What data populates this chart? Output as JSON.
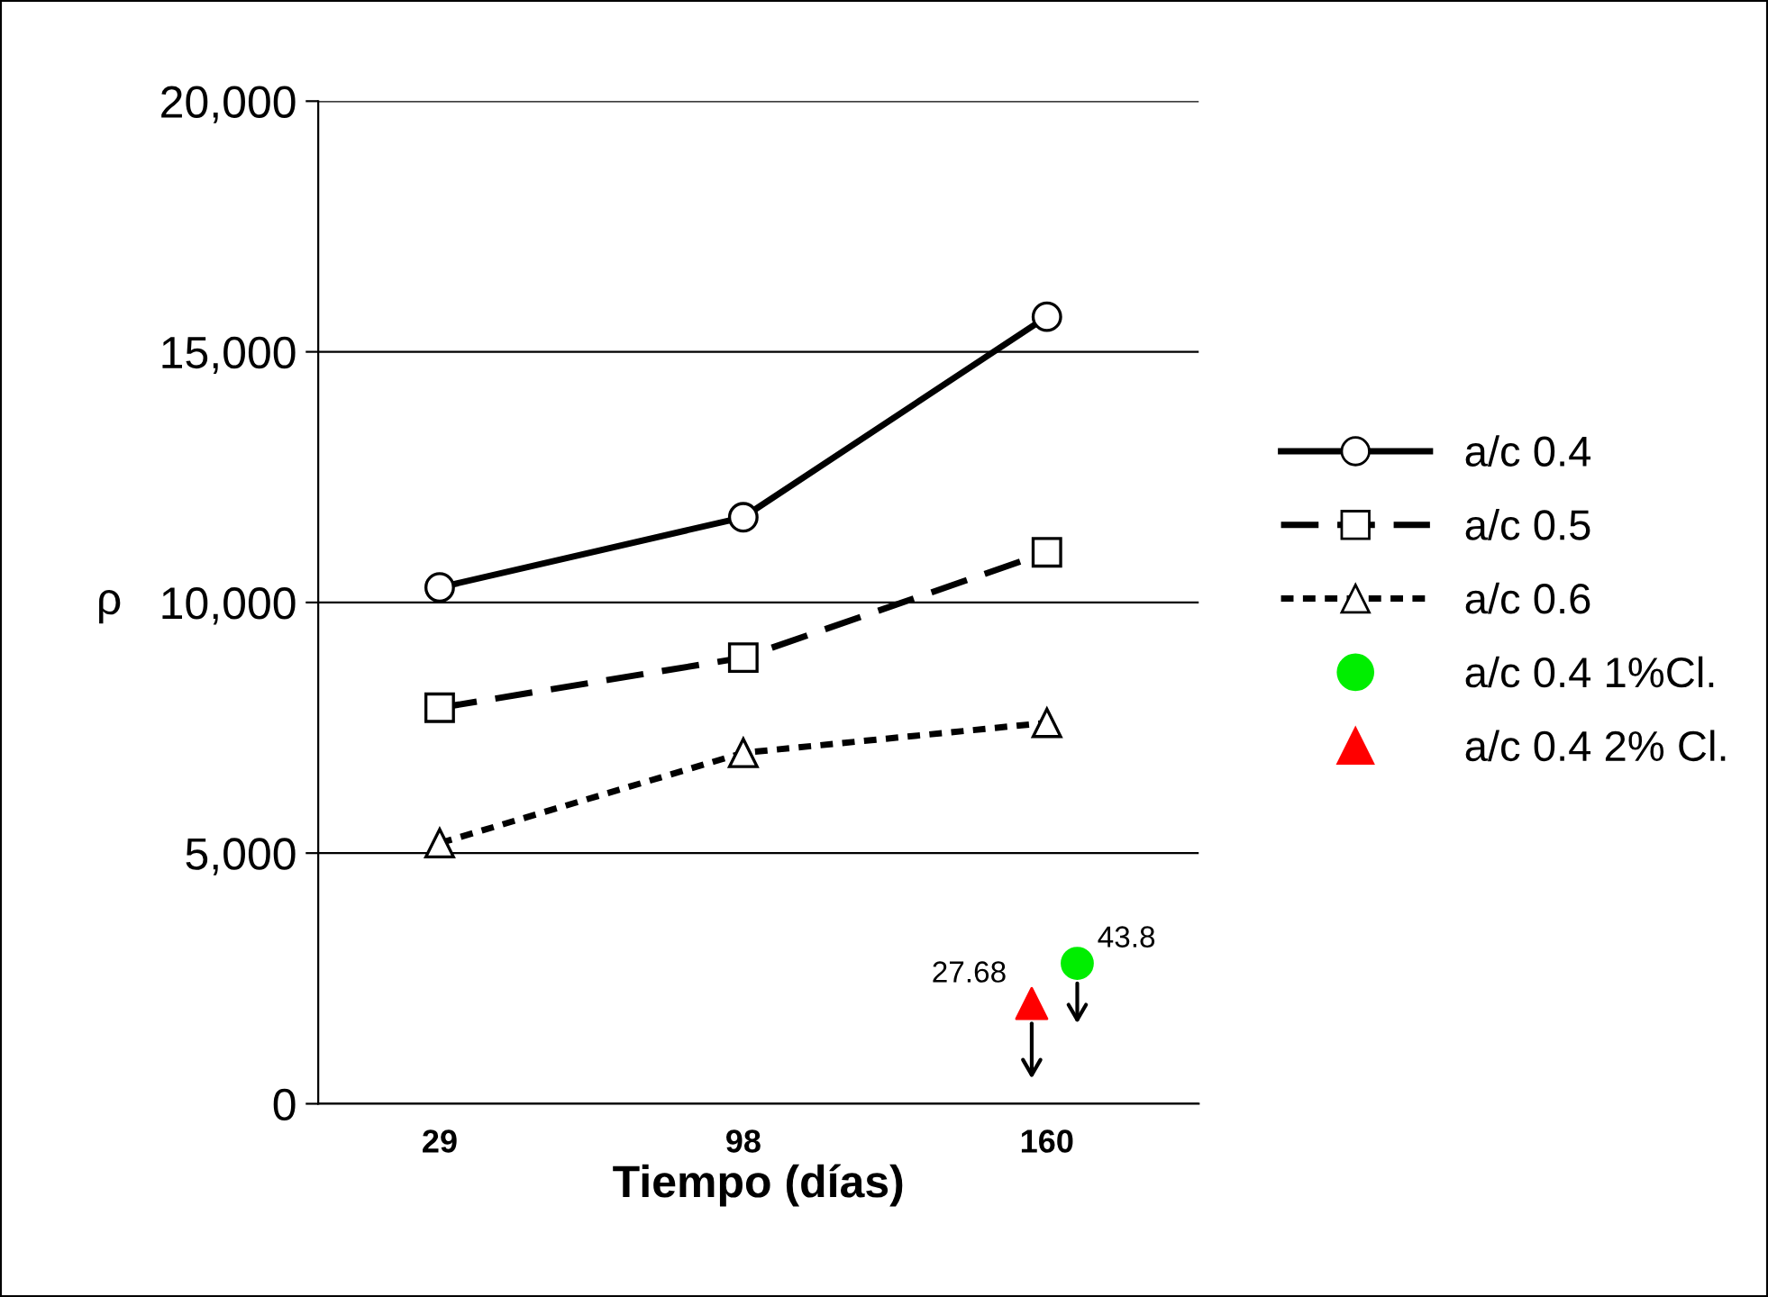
{
  "chart_data": {
    "type": "line",
    "xlabel": "Tiempo (días)",
    "ylabel": "ρ",
    "categories": [
      "29",
      "98",
      "160"
    ],
    "ylim": [
      0,
      20000
    ],
    "yticks": [
      0,
      {
        "value": 5000,
        "label": "5,000"
      },
      {
        "value": 10000,
        "label": "10,000"
      },
      {
        "value": 15000,
        "label": "15,000"
      },
      {
        "value": 20000,
        "label": "20,000"
      }
    ],
    "grid": "y",
    "legend": "right",
    "series": [
      {
        "name": "a/c 0.4",
        "color": "#000000",
        "values": [
          10300,
          11700,
          15700
        ],
        "marker": "circle",
        "line_style": "solid"
      },
      {
        "name": "a/c 0.5",
        "color": "#000000",
        "values": [
          7900,
          8900,
          11000
        ],
        "marker": "square",
        "line_style": "dashed"
      },
      {
        "name": "a/c 0.6",
        "color": "#000000",
        "values": [
          5200,
          7000,
          7600
        ],
        "marker": "triangle",
        "line_style": "dotted"
      },
      {
        "name": "a/c 0.4 1%Cl.",
        "type": "scatter",
        "color": "#00ee00",
        "x": [
          "160"
        ],
        "values": [
          2800
        ],
        "marker": "circle"
      },
      {
        "name": "a/c 0.4 2% Cl.",
        "type": "scatter",
        "color": "#ff0000",
        "x": [
          "160"
        ],
        "values": [
          2000
        ],
        "marker": "triangle"
      }
    ],
    "annotations": [
      "43.8",
      "27.68"
    ]
  }
}
